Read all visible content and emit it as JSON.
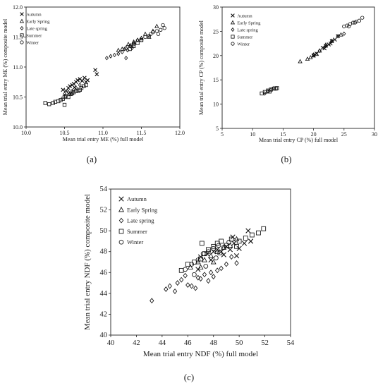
{
  "figure": {
    "panel_labels": [
      "(a)",
      "(b)",
      "(c)"
    ]
  },
  "legend_entries": [
    "Autumn",
    "Early Spring",
    "Late spring",
    "Summer",
    "Winter"
  ],
  "series_markers": {
    "Autumn": "x-icon",
    "Early Spring": "triangle-icon",
    "Late spring": "diamond-icon",
    "Summer": "square-icon",
    "Winter": "circle-icon"
  },
  "chart_data": [
    {
      "type": "scatter",
      "panel": "(a)",
      "xlabel": "Mean trial entry ME (%) full model",
      "ylabel": "Mean trial entry ME (%) composite model",
      "xlim": [
        10.0,
        12.0
      ],
      "ylim": [
        10.0,
        12.0
      ],
      "xticks": [
        "10.0",
        "10.5",
        "11.0",
        "11.5",
        "12.0"
      ],
      "yticks": [
        "10.0",
        "10.5",
        "11.0",
        "11.5",
        "12.0"
      ],
      "grid": false,
      "legend_position": "top-left",
      "series": [
        {
          "name": "Autumn",
          "x": [
            10.48,
            10.52,
            10.55,
            10.57,
            10.6,
            10.62,
            10.65,
            10.67,
            10.7,
            10.73,
            10.76,
            10.78,
            10.8,
            10.9,
            10.92,
            10.58,
            10.63
          ],
          "y": [
            10.62,
            10.6,
            10.65,
            10.68,
            10.7,
            10.72,
            10.75,
            10.78,
            10.8,
            10.77,
            10.82,
            10.75,
            10.78,
            10.95,
            10.88,
            10.55,
            10.66
          ]
        },
        {
          "name": "Early Spring",
          "x": [
            11.2,
            11.25,
            11.3,
            11.33,
            11.36,
            11.4,
            11.45,
            11.5,
            11.55,
            11.6,
            11.65,
            11.7
          ],
          "y": [
            11.28,
            11.3,
            11.32,
            11.38,
            11.36,
            11.42,
            11.45,
            11.48,
            11.55,
            11.5,
            11.6,
            11.68
          ]
        },
        {
          "name": "Late spring",
          "x": [
            10.5,
            10.55,
            10.6,
            10.65,
            10.7,
            11.05,
            11.1,
            11.15,
            11.2,
            11.25,
            11.28,
            11.32,
            11.35,
            11.38,
            11.4,
            11.45,
            11.5,
            11.3
          ],
          "y": [
            10.55,
            10.58,
            10.6,
            10.65,
            10.7,
            11.15,
            11.18,
            11.2,
            11.22,
            11.25,
            11.3,
            11.28,
            11.35,
            11.32,
            11.4,
            11.45,
            11.48,
            11.15
          ]
        },
        {
          "name": "Summer",
          "x": [
            10.25,
            10.3,
            10.35,
            10.38,
            10.42,
            10.45,
            10.48,
            10.5,
            10.52,
            10.55,
            10.58,
            10.6,
            10.62,
            10.65,
            10.68,
            10.7,
            10.72,
            10.75,
            10.78,
            10.5,
            11.35,
            11.4,
            11.45,
            11.5
          ],
          "y": [
            10.4,
            10.38,
            10.4,
            10.42,
            10.43,
            10.45,
            10.47,
            10.5,
            10.52,
            10.5,
            10.55,
            10.56,
            10.58,
            10.6,
            10.6,
            10.62,
            10.65,
            10.68,
            10.7,
            10.37,
            11.3,
            11.35,
            11.4,
            11.45
          ]
        },
        {
          "name": "Winter",
          "x": [
            11.55,
            11.6,
            11.62,
            11.65,
            11.7,
            11.72,
            11.75,
            11.78,
            11.8,
            11.5,
            11.4
          ],
          "y": [
            11.5,
            11.52,
            11.55,
            11.58,
            11.6,
            11.55,
            11.62,
            11.7,
            11.65,
            11.45,
            11.38
          ]
        }
      ]
    },
    {
      "type": "scatter",
      "panel": "(b)",
      "xlabel": "Mean trial entry CP (%) full model",
      "ylabel": "Mean trial entry CP (%) composite model",
      "xlim": [
        5,
        30
      ],
      "ylim": [
        5,
        30
      ],
      "xticks": [
        "5",
        "10",
        "15",
        "20",
        "25",
        "30"
      ],
      "yticks": [
        "5",
        "10",
        "15",
        "20",
        "25",
        "30"
      ],
      "grid": false,
      "legend_position": "top-left",
      "series": [
        {
          "name": "Autumn",
          "x": [
            20.0,
            20.5,
            21.5,
            22.0,
            22.5,
            23.0,
            23.5,
            24.0,
            22.8,
            21.8
          ],
          "y": [
            20.0,
            20.4,
            21.6,
            22.0,
            22.3,
            23.0,
            23.3,
            24.0,
            22.5,
            21.5
          ]
        },
        {
          "name": "Early Spring",
          "x": [
            17.8,
            19.0,
            19.5,
            20.0,
            20.5,
            21.0,
            22.0,
            23.0,
            24.5
          ],
          "y": [
            18.8,
            19.3,
            19.6,
            20.0,
            20.3,
            21.0,
            22.2,
            23.0,
            24.3
          ]
        },
        {
          "name": "Late spring",
          "x": [
            12.0,
            12.5,
            13.0,
            13.5,
            20.0,
            21.0,
            22.0,
            23.0,
            24.0,
            25.0
          ],
          "y": [
            12.2,
            12.6,
            13.0,
            13.3,
            20.2,
            21.0,
            22.0,
            23.0,
            24.0,
            24.5
          ]
        },
        {
          "name": "Summer",
          "x": [
            11.5,
            12.0,
            12.5,
            13.0,
            13.5,
            14.0,
            12.8,
            13.8
          ],
          "y": [
            12.2,
            12.5,
            12.8,
            13.0,
            13.2,
            13.3,
            12.6,
            13.2
          ]
        },
        {
          "name": "Winter",
          "x": [
            25.0,
            25.5,
            26.0,
            26.5,
            27.0,
            27.5,
            28.0,
            25.8,
            26.8
          ],
          "y": [
            26.0,
            26.2,
            26.5,
            26.8,
            27.0,
            27.2,
            27.8,
            26.0,
            26.8
          ]
        }
      ]
    },
    {
      "type": "scatter",
      "panel": "(c)",
      "xlabel": "Mean trial entry NDF (%) full model",
      "ylabel": "Mean trial entry NDF (%) composite model",
      "xlim": [
        40,
        54
      ],
      "ylim": [
        40,
        54
      ],
      "xticks": [
        "40",
        "42",
        "44",
        "46",
        "48",
        "50",
        "52",
        "54"
      ],
      "yticks": [
        "40",
        "42",
        "44",
        "46",
        "48",
        "50",
        "52",
        "54"
      ],
      "grid": false,
      "legend_position": "top-left",
      "series": [
        {
          "name": "Autumn",
          "x": [
            47.0,
            47.5,
            48.0,
            48.3,
            48.6,
            49.0,
            49.3,
            49.6,
            50.0,
            50.4,
            50.7,
            50.9,
            49.8,
            48.8,
            47.8,
            46.8,
            49.5
          ],
          "y": [
            47.5,
            47.8,
            48.0,
            48.2,
            48.0,
            48.5,
            48.2,
            48.8,
            48.3,
            48.8,
            50.0,
            49.0,
            47.6,
            47.7,
            47.2,
            46.3,
            49.4
          ]
        },
        {
          "name": "Early Spring",
          "x": [
            46.2,
            46.8,
            47.3,
            47.8,
            48.3,
            48.8,
            49.3,
            49.8,
            48.0,
            47.0
          ],
          "y": [
            46.5,
            47.0,
            47.2,
            47.6,
            48.0,
            48.4,
            48.6,
            49.2,
            47.0,
            46.5
          ]
        },
        {
          "name": "Late spring",
          "x": [
            43.2,
            44.3,
            44.6,
            45.0,
            45.2,
            45.5,
            45.8,
            46.0,
            46.3,
            46.6,
            47.0,
            47.3,
            47.6,
            48.0,
            48.3,
            48.6,
            49.0,
            49.4,
            49.8,
            46.8,
            47.8
          ],
          "y": [
            43.3,
            44.4,
            44.7,
            44.2,
            45.0,
            45.3,
            45.7,
            44.8,
            44.7,
            44.5,
            45.4,
            45.8,
            45.2,
            45.6,
            46.2,
            46.4,
            46.8,
            47.5,
            46.9,
            45.5,
            46.0
          ]
        },
        {
          "name": "Summer",
          "x": [
            45.5,
            46.0,
            46.5,
            47.0,
            47.3,
            47.6,
            48.0,
            48.3,
            48.6,
            49.0,
            49.4,
            50.0,
            50.5,
            51.0,
            51.5,
            51.9,
            47.1,
            48.5,
            49.8
          ],
          "y": [
            46.2,
            46.8,
            47.0,
            47.3,
            47.8,
            48.2,
            48.5,
            48.8,
            49.0,
            48.6,
            49.2,
            49.0,
            49.3,
            49.6,
            49.8,
            50.2,
            48.8,
            47.9,
            48.5
          ]
        },
        {
          "name": "Winter",
          "x": [
            45.8,
            46.3,
            46.8,
            47.2,
            47.6,
            48.0,
            48.4,
            48.8,
            49.2,
            46.5,
            47.4,
            48.2
          ],
          "y": [
            46.3,
            46.8,
            47.2,
            47.8,
            48.0,
            48.3,
            48.6,
            48.4,
            48.9,
            45.8,
            46.6,
            47.4
          ]
        }
      ]
    }
  ]
}
